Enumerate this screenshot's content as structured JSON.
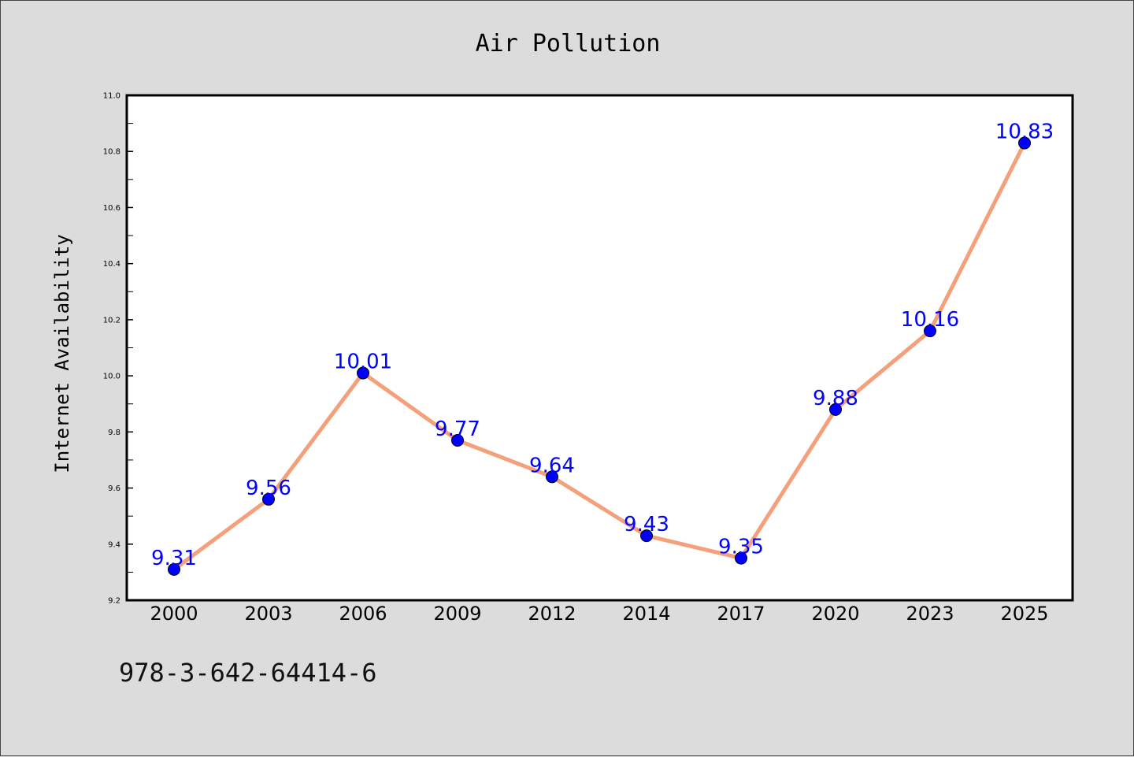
{
  "chart_data": {
    "type": "line",
    "title": "Air Pollution",
    "xlabel": "",
    "ylabel": "Internet Availability",
    "categories": [
      "2000",
      "2003",
      "2006",
      "2009",
      "2012",
      "2014",
      "2017",
      "2020",
      "2023",
      "2025"
    ],
    "series": [
      {
        "values": [
          9.31,
          9.56,
          10.01,
          9.77,
          9.64,
          9.43,
          9.35,
          9.88,
          10.16,
          10.83
        ],
        "labels": [
          "9.31",
          "9.56",
          "10.01",
          "9.77",
          "9.64",
          "9.43",
          "9.35",
          "9.88",
          "10.16",
          "10.83"
        ],
        "line_color": "#f4a07a",
        "marker_color": "#0000ff"
      }
    ],
    "ylim": [
      9.2,
      11.0
    ],
    "yticks": [
      "9.2",
      "9.4",
      "9.6",
      "9.8",
      "10.0",
      "10.2",
      "10.4",
      "10.6",
      "10.8",
      "11.0"
    ],
    "grid": false,
    "background_color": "#dcdcdc",
    "plot_background_color": "#ffffff"
  },
  "footer": {
    "identifier": "978-3-642-64414-6"
  }
}
